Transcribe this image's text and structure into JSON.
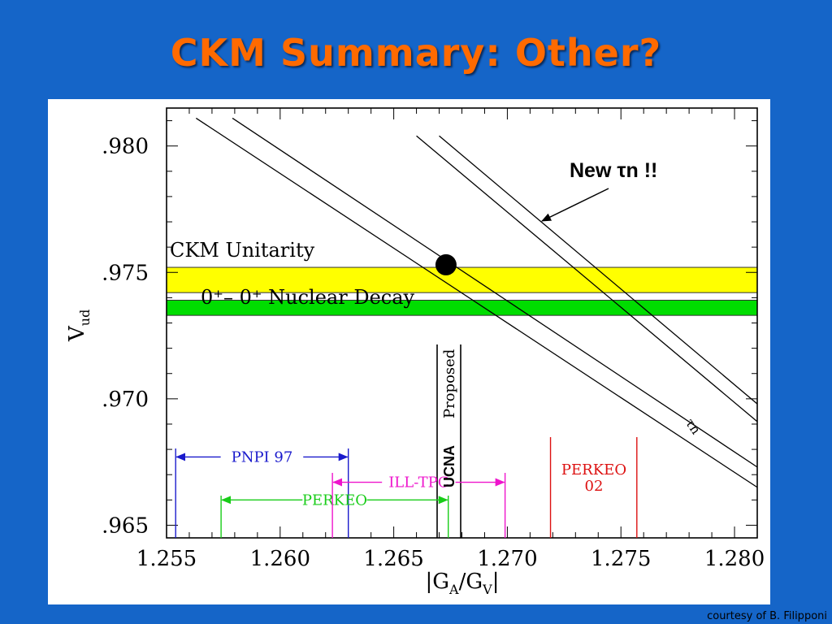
{
  "slide": {
    "title": "CKM Summary: Other?",
    "credit": "courtesy of B. Filipponi",
    "background": "#1565c8",
    "title_color": "#ff6a00"
  },
  "chart_data": {
    "type": "line",
    "xlabel": "|G_A/G_V|",
    "ylabel": "V_ud",
    "xlim": [
      1.255,
      1.281
    ],
    "ylim": [
      0.9645,
      0.9815
    ],
    "x_ticks": [
      {
        "value": 1.255,
        "label": "1.255"
      },
      {
        "value": 1.26,
        "label": "1.260"
      },
      {
        "value": 1.265,
        "label": "1.265"
      },
      {
        "value": 1.27,
        "label": "1.270"
      },
      {
        "value": 1.275,
        "label": "1.275"
      },
      {
        "value": 1.28,
        "label": "1.280"
      }
    ],
    "y_ticks": [
      {
        "value": 0.965,
        "label": ".965"
      },
      {
        "value": 0.97,
        "label": ".970"
      },
      {
        "value": 0.975,
        "label": ".975"
      },
      {
        "value": 0.98,
        "label": ".980"
      }
    ],
    "bands": [
      {
        "name": "CKM Unitarity",
        "y": [
          0.9742,
          0.9752
        ],
        "color": "#ffff00"
      },
      {
        "name": "0+- 0+ Nuclear Decay",
        "y": [
          0.9733,
          0.9739
        ],
        "color": "#00dd00"
      }
    ],
    "band_lines": [
      {
        "name": "tau_n",
        "x": [
          1.2563,
          1.281
        ],
        "y": [
          0.9811,
          0.9665
        ]
      },
      {
        "name": "tau_n",
        "x": [
          1.2579,
          1.281
        ],
        "y": [
          0.9811,
          0.9673
        ]
      },
      {
        "name": "new_tau_n",
        "x": [
          1.266,
          1.281
        ],
        "y": [
          0.9804,
          0.9691
        ]
      },
      {
        "name": "new_tau_n",
        "x": [
          1.267,
          1.281
        ],
        "y": [
          0.9804,
          0.9698
        ]
      }
    ],
    "point": {
      "x": 1.2673,
      "y": 0.9753
    },
    "measurements": [
      {
        "label": "PNPI  97",
        "x": [
          1.2554,
          1.263
        ],
        "y": 0.9677,
        "color": "#1a1acc",
        "arrows": "outward"
      },
      {
        "label": "PERKEO",
        "x": [
          1.2574,
          1.2674
        ],
        "y": 0.966,
        "color": "#18cc18",
        "arrows": "outward"
      },
      {
        "label": "ILL-TPC",
        "x": [
          1.2623,
          1.2699
        ],
        "y": 0.9667,
        "color": "#ee14cc",
        "arrows": "outward"
      },
      {
        "label": "PERKEO\n02",
        "x": [
          1.2719,
          1.2757
        ],
        "y": null,
        "color": "#dd1111",
        "arrows": "none"
      }
    ],
    "annotations": {
      "ckm_label": "CKM  Unitarity",
      "nuclear_label": "0⁺–  0⁺  Nuclear  Decay",
      "tau_label": "τn",
      "proposed_label": "Proposed",
      "ucna_label": "UCNA",
      "new_tau_label": "New τn !!",
      "perkeo02_label": "PERKEO 02"
    }
  }
}
